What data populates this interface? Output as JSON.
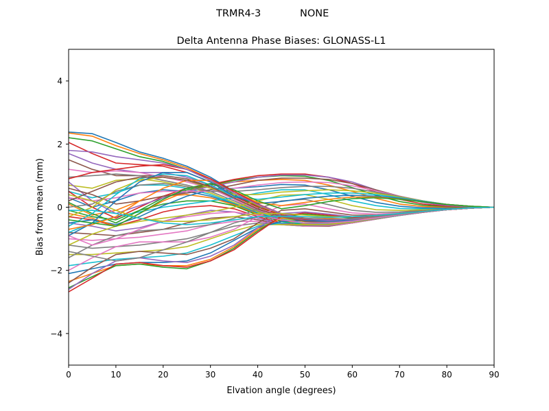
{
  "figure": {
    "suptitle_left": "TRMR4-3",
    "suptitle_right": "NONE"
  },
  "chart_data": {
    "type": "line",
    "title": "Delta Antenna Phase Biases: GLONASS-L1",
    "xlabel": "Elvation angle (degrees)",
    "ylabel": "Bias from mean (mm)",
    "xlim": [
      0,
      90
    ],
    "ylim": [
      -5,
      5
    ],
    "xticks": [
      0,
      10,
      20,
      30,
      40,
      50,
      60,
      70,
      80,
      90
    ],
    "yticks": [
      -4,
      -2,
      0,
      2,
      4
    ],
    "ytick_labels": [
      "−4",
      "−2",
      "0",
      "2",
      "4"
    ],
    "grid": false,
    "legend": "none",
    "x": [
      0,
      5,
      10,
      15,
      20,
      25,
      30,
      35,
      40,
      45,
      50,
      55,
      60,
      65,
      70,
      75,
      80,
      85,
      90
    ],
    "colors": [
      "#1f77b4",
      "#ff7f0e",
      "#2ca02c",
      "#d62728",
      "#9467bd",
      "#8c564b",
      "#e377c2",
      "#7f7f7f",
      "#bcbd22",
      "#17becf"
    ],
    "series": [
      {
        "values": [
          2.38,
          2.33,
          2.05,
          1.75,
          1.55,
          1.3,
          0.95,
          0.5,
          0.1,
          -0.2,
          -0.38,
          -0.45,
          -0.4,
          -0.32,
          -0.25,
          -0.15,
          -0.08,
          -0.03,
          0
        ]
      },
      {
        "values": [
          2.35,
          2.25,
          1.95,
          1.7,
          1.5,
          1.25,
          0.9,
          0.45,
          0.05,
          -0.22,
          -0.4,
          -0.45,
          -0.42,
          -0.33,
          -0.25,
          -0.15,
          -0.08,
          -0.03,
          0
        ]
      },
      {
        "values": [
          2.2,
          2.1,
          1.85,
          1.6,
          1.45,
          1.2,
          0.85,
          0.4,
          0.02,
          -0.25,
          -0.42,
          -0.46,
          -0.42,
          -0.34,
          -0.25,
          -0.15,
          -0.08,
          -0.03,
          0
        ]
      },
      {
        "values": [
          2.05,
          1.7,
          1.4,
          1.35,
          1.3,
          1.1,
          0.8,
          0.35,
          0.0,
          -0.25,
          -0.4,
          -0.45,
          -0.4,
          -0.32,
          -0.24,
          -0.15,
          -0.08,
          -0.03,
          0
        ]
      },
      {
        "values": [
          1.7,
          1.4,
          1.2,
          1.1,
          1.1,
          0.95,
          0.7,
          0.3,
          -0.05,
          -0.28,
          -0.42,
          -0.46,
          -0.4,
          -0.32,
          -0.24,
          -0.15,
          -0.08,
          -0.03,
          0
        ]
      },
      {
        "values": [
          1.5,
          1.2,
          1.0,
          1.0,
          1.0,
          0.9,
          0.65,
          0.28,
          -0.08,
          -0.3,
          -0.44,
          -0.48,
          -0.42,
          -0.33,
          -0.24,
          -0.15,
          -0.08,
          -0.03,
          0
        ]
      },
      {
        "values": [
          1.2,
          1.1,
          1.15,
          1.1,
          0.95,
          0.8,
          0.6,
          0.25,
          -0.1,
          -0.32,
          -0.45,
          -0.48,
          -0.42,
          -0.33,
          -0.24,
          -0.15,
          -0.08,
          -0.03,
          0
        ]
      },
      {
        "values": [
          0.95,
          1.0,
          1.05,
          1.0,
          0.85,
          0.7,
          0.5,
          0.2,
          -0.12,
          -0.33,
          -0.45,
          -0.48,
          -0.42,
          -0.32,
          -0.24,
          -0.15,
          -0.08,
          -0.03,
          0
        ]
      },
      {
        "values": [
          0.7,
          0.6,
          0.85,
          0.9,
          0.8,
          0.65,
          0.45,
          0.15,
          -0.15,
          -0.35,
          -0.46,
          -0.5,
          -0.44,
          -0.34,
          -0.25,
          -0.15,
          -0.08,
          -0.03,
          0
        ]
      },
      {
        "values": [
          0.5,
          0.3,
          0.45,
          0.7,
          0.7,
          0.6,
          0.4,
          0.12,
          -0.18,
          -0.38,
          -0.5,
          -0.52,
          -0.45,
          -0.35,
          -0.25,
          -0.15,
          -0.08,
          -0.03,
          0
        ]
      },
      {
        "values": [
          0.3,
          0.0,
          0.2,
          0.45,
          0.55,
          0.5,
          0.35,
          0.1,
          -0.2,
          -0.4,
          -0.52,
          -0.54,
          -0.46,
          -0.35,
          -0.25,
          -0.15,
          -0.08,
          -0.03,
          0
        ]
      },
      {
        "values": [
          0.1,
          -0.25,
          -0.1,
          0.2,
          0.35,
          0.4,
          0.3,
          0.08,
          -0.22,
          -0.42,
          -0.54,
          -0.55,
          -0.46,
          -0.35,
          -0.25,
          -0.15,
          -0.08,
          -0.03,
          0
        ]
      },
      {
        "values": [
          -0.1,
          -0.3,
          -0.4,
          -0.1,
          0.1,
          0.2,
          0.2,
          0.05,
          -0.25,
          -0.45,
          -0.56,
          -0.56,
          -0.48,
          -0.36,
          -0.25,
          -0.15,
          -0.08,
          -0.03,
          0
        ]
      },
      {
        "values": [
          -0.3,
          -0.4,
          -0.6,
          -0.4,
          -0.15,
          0.0,
          0.05,
          -0.05,
          -0.3,
          -0.5,
          -0.58,
          -0.58,
          -0.5,
          -0.37,
          -0.26,
          -0.16,
          -0.08,
          -0.03,
          0
        ]
      },
      {
        "values": [
          -0.5,
          -0.6,
          -0.75,
          -0.65,
          -0.45,
          -0.25,
          -0.1,
          -0.15,
          -0.35,
          -0.52,
          -0.6,
          -0.6,
          -0.5,
          -0.38,
          -0.26,
          -0.16,
          -0.08,
          -0.03,
          0
        ]
      },
      {
        "values": [
          -0.8,
          -0.85,
          -0.9,
          -0.8,
          -0.7,
          -0.5,
          -0.35,
          -0.3,
          -0.4,
          -0.55,
          -0.6,
          -0.6,
          -0.5,
          -0.38,
          -0.26,
          -0.16,
          -0.08,
          -0.03,
          0
        ]
      },
      {
        "values": [
          -1.0,
          -1.05,
          -1.0,
          -0.95,
          -0.85,
          -0.75,
          -0.55,
          -0.45,
          -0.45,
          -0.55,
          -0.6,
          -0.58,
          -0.5,
          -0.38,
          -0.26,
          -0.16,
          -0.08,
          -0.03,
          0
        ]
      },
      {
        "values": [
          -1.2,
          -1.3,
          -1.25,
          -1.2,
          -1.1,
          -1.0,
          -0.8,
          -0.6,
          -0.5,
          -0.55,
          -0.58,
          -0.56,
          -0.48,
          -0.37,
          -0.26,
          -0.16,
          -0.08,
          -0.03,
          0
        ]
      },
      {
        "values": [
          -1.5,
          -1.5,
          -1.45,
          -1.4,
          -1.35,
          -1.25,
          -1.0,
          -0.75,
          -0.55,
          -0.55,
          -0.55,
          -0.54,
          -0.47,
          -0.36,
          -0.25,
          -0.15,
          -0.08,
          -0.03,
          0
        ]
      },
      {
        "values": [
          -1.85,
          -1.75,
          -1.65,
          -1.6,
          -1.55,
          -1.45,
          -1.2,
          -0.9,
          -0.6,
          -0.5,
          -0.5,
          -0.5,
          -0.45,
          -0.35,
          -0.25,
          -0.15,
          -0.08,
          -0.03,
          0
        ]
      },
      {
        "values": [
          -2.1,
          -1.95,
          -1.8,
          -1.75,
          -1.75,
          -1.7,
          -1.45,
          -1.05,
          -0.65,
          -0.45,
          -0.42,
          -0.44,
          -0.42,
          -0.34,
          -0.24,
          -0.15,
          -0.08,
          -0.03,
          0
        ]
      },
      {
        "values": [
          -2.35,
          -2.1,
          -1.85,
          -1.8,
          -1.85,
          -1.85,
          -1.65,
          -1.25,
          -0.7,
          -0.35,
          -0.3,
          -0.35,
          -0.38,
          -0.32,
          -0.23,
          -0.14,
          -0.08,
          -0.03,
          0
        ]
      },
      {
        "values": [
          -2.55,
          -2.2,
          -1.85,
          -1.8,
          -1.9,
          -1.95,
          -1.7,
          -1.3,
          -0.75,
          -0.3,
          -0.22,
          -0.28,
          -0.34,
          -0.3,
          -0.22,
          -0.14,
          -0.08,
          -0.03,
          0
        ]
      },
      {
        "values": [
          -2.68,
          -2.25,
          -1.8,
          -1.75,
          -1.85,
          -1.9,
          -1.7,
          -1.35,
          -0.8,
          -0.28,
          -0.18,
          -0.25,
          -0.32,
          -0.29,
          -0.21,
          -0.14,
          -0.08,
          -0.03,
          0
        ]
      },
      {
        "values": [
          -2.6,
          -2.1,
          -1.7,
          -1.6,
          -1.7,
          -1.75,
          -1.55,
          -1.2,
          -0.65,
          -0.2,
          -0.15,
          -0.22,
          -0.3,
          -0.28,
          -0.21,
          -0.13,
          -0.07,
          -0.03,
          0
        ]
      },
      {
        "values": [
          -2.4,
          -1.9,
          -1.5,
          -1.4,
          -1.45,
          -1.5,
          -1.3,
          -1.0,
          -0.5,
          -0.1,
          -0.05,
          -0.15,
          -0.25,
          -0.25,
          -0.2,
          -0.13,
          -0.07,
          -0.03,
          0
        ]
      },
      {
        "values": [
          -2.0,
          -1.6,
          -1.25,
          -1.1,
          -1.1,
          -1.1,
          -0.95,
          -0.7,
          -0.3,
          0.05,
          0.1,
          -0.05,
          -0.18,
          -0.22,
          -0.18,
          -0.12,
          -0.07,
          -0.03,
          0
        ]
      },
      {
        "values": [
          -1.6,
          -1.2,
          -0.9,
          -0.75,
          -0.7,
          -0.65,
          -0.55,
          -0.35,
          -0.05,
          0.2,
          0.25,
          0.08,
          -0.1,
          -0.16,
          -0.15,
          -0.1,
          -0.06,
          -0.02,
          0
        ]
      },
      {
        "values": [
          -1.2,
          -0.85,
          -0.6,
          -0.45,
          -0.35,
          -0.25,
          -0.15,
          0.0,
          0.2,
          0.38,
          0.4,
          0.25,
          0.05,
          -0.08,
          -0.1,
          -0.08,
          -0.05,
          -0.02,
          0
        ]
      },
      {
        "values": [
          -0.8,
          -0.5,
          -0.3,
          -0.15,
          0.0,
          0.1,
          0.2,
          0.3,
          0.45,
          0.55,
          0.55,
          0.4,
          0.2,
          0.05,
          -0.04,
          -0.05,
          -0.04,
          -0.02,
          0
        ]
      },
      {
        "values": [
          -0.5,
          -0.4,
          -0.55,
          -0.3,
          0.05,
          0.35,
          0.55,
          0.6,
          0.65,
          0.72,
          0.7,
          0.55,
          0.35,
          0.15,
          0.03,
          -0.02,
          -0.02,
          -0.01,
          0
        ]
      },
      {
        "values": [
          -0.2,
          -0.35,
          -0.6,
          -0.2,
          0.2,
          0.5,
          0.7,
          0.8,
          0.85,
          0.88,
          0.85,
          0.7,
          0.5,
          0.28,
          0.1,
          0.02,
          0.0,
          0.0,
          0
        ]
      },
      {
        "values": [
          0.15,
          -0.2,
          -0.5,
          -0.1,
          0.3,
          0.55,
          0.7,
          0.85,
          0.95,
          1.0,
          0.98,
          0.85,
          0.62,
          0.38,
          0.18,
          0.06,
          0.02,
          0.0,
          0
        ]
      },
      {
        "values": [
          0.5,
          0.0,
          -0.35,
          0.0,
          0.35,
          0.6,
          0.72,
          0.88,
          1.0,
          1.05,
          1.05,
          0.95,
          0.75,
          0.48,
          0.25,
          0.1,
          0.03,
          0.01,
          0
        ]
      },
      {
        "values": [
          0.8,
          0.2,
          -0.2,
          0.05,
          0.3,
          0.5,
          0.65,
          0.8,
          0.95,
          1.02,
          1.02,
          0.95,
          0.8,
          0.55,
          0.32,
          0.15,
          0.05,
          0.01,
          0
        ]
      },
      {
        "values": [
          0.6,
          0.4,
          0.1,
          0.2,
          0.35,
          0.45,
          0.55,
          0.7,
          0.85,
          0.92,
          0.92,
          0.88,
          0.75,
          0.55,
          0.35,
          0.18,
          0.07,
          0.02,
          0
        ]
      },
      {
        "values": [
          0.3,
          0.2,
          0.3,
          0.45,
          0.5,
          0.5,
          0.5,
          0.6,
          0.7,
          0.78,
          0.8,
          0.78,
          0.68,
          0.52,
          0.35,
          0.2,
          0.08,
          0.02,
          0
        ]
      },
      {
        "values": [
          0.0,
          0.1,
          0.5,
          0.7,
          0.75,
          0.65,
          0.5,
          0.5,
          0.55,
          0.62,
          0.66,
          0.66,
          0.6,
          0.48,
          0.34,
          0.2,
          0.09,
          0.02,
          0
        ]
      },
      {
        "values": [
          -0.3,
          0.0,
          0.55,
          0.85,
          0.95,
          0.85,
          0.6,
          0.4,
          0.4,
          0.48,
          0.52,
          0.55,
          0.52,
          0.44,
          0.32,
          0.2,
          0.09,
          0.03,
          0
        ]
      },
      {
        "values": [
          -0.6,
          -0.2,
          0.4,
          0.9,
          1.05,
          1.0,
          0.7,
          0.35,
          0.25,
          0.32,
          0.4,
          0.45,
          0.45,
          0.4,
          0.3,
          0.19,
          0.09,
          0.03,
          0
        ]
      },
      {
        "values": [
          -0.9,
          -0.5,
          0.2,
          0.8,
          1.1,
          1.1,
          0.8,
          0.35,
          0.12,
          0.18,
          0.28,
          0.35,
          0.38,
          0.35,
          0.28,
          0.18,
          0.09,
          0.03,
          0
        ]
      },
      {
        "values": [
          -0.7,
          -0.55,
          -0.3,
          0.2,
          0.6,
          0.85,
          0.85,
          0.5,
          0.15,
          0.05,
          0.15,
          0.25,
          0.32,
          0.32,
          0.26,
          0.17,
          0.09,
          0.03,
          0
        ]
      },
      {
        "values": [
          -0.4,
          -0.5,
          -0.6,
          -0.2,
          0.25,
          0.6,
          0.75,
          0.55,
          0.2,
          -0.05,
          0.05,
          0.18,
          0.27,
          0.3,
          0.25,
          0.17,
          0.09,
          0.03,
          0
        ]
      },
      {
        "values": [
          0.9,
          1.1,
          1.2,
          1.3,
          1.35,
          1.2,
          0.9,
          0.5,
          0.1,
          -0.2,
          -0.35,
          -0.4,
          -0.36,
          -0.28,
          -0.2,
          -0.12,
          -0.06,
          -0.02,
          0
        ]
      },
      {
        "values": [
          1.8,
          1.75,
          1.6,
          1.5,
          1.4,
          1.2,
          0.85,
          0.45,
          0.08,
          -0.2,
          -0.36,
          -0.42,
          -0.38,
          -0.3,
          -0.22,
          -0.13,
          -0.07,
          -0.02,
          0
        ]
      },
      {
        "values": [
          0.2,
          0.5,
          0.8,
          0.95,
          0.95,
          0.85,
          0.65,
          0.3,
          -0.05,
          -0.3,
          -0.45,
          -0.5,
          -0.44,
          -0.34,
          -0.24,
          -0.15,
          -0.08,
          -0.03,
          0
        ]
      },
      {
        "values": [
          -0.9,
          -1.2,
          -1.0,
          -0.7,
          -0.45,
          -0.3,
          -0.2,
          -0.15,
          -0.25,
          -0.4,
          -0.5,
          -0.5,
          -0.44,
          -0.34,
          -0.24,
          -0.15,
          -0.08,
          -0.03,
          0
        ]
      },
      {
        "values": [
          -1.4,
          -1.55,
          -1.7,
          -1.6,
          -1.35,
          -1.1,
          -0.8,
          -0.5,
          -0.3,
          -0.3,
          -0.35,
          -0.38,
          -0.36,
          -0.3,
          -0.22,
          -0.14,
          -0.07,
          -0.02,
          0
        ]
      },
      {
        "values": [
          0.4,
          0.2,
          -0.1,
          -0.35,
          -0.45,
          -0.45,
          -0.4,
          -0.3,
          -0.2,
          -0.2,
          -0.25,
          -0.3,
          -0.3,
          -0.26,
          -0.2,
          -0.13,
          -0.07,
          -0.02,
          0
        ]
      },
      {
        "values": [
          -0.1,
          -0.1,
          -0.2,
          -0.35,
          -0.5,
          -0.55,
          -0.5,
          -0.4,
          -0.3,
          -0.28,
          -0.3,
          -0.32,
          -0.3,
          -0.26,
          -0.2,
          -0.13,
          -0.07,
          -0.02,
          0
        ]
      }
    ]
  }
}
